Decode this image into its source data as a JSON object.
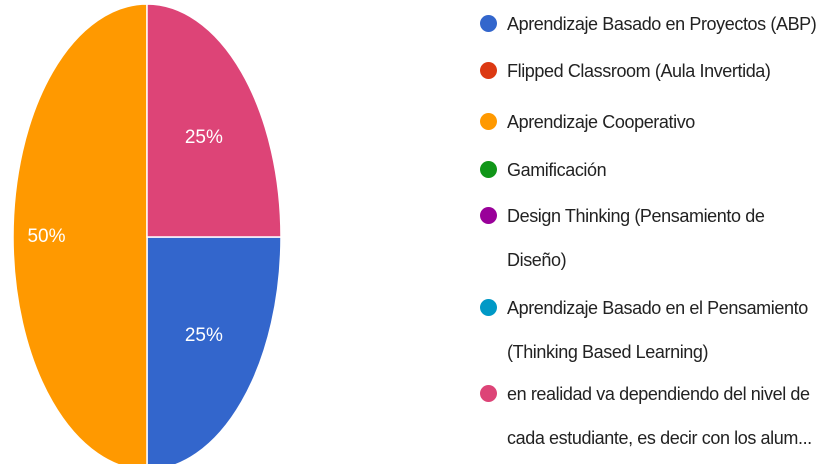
{
  "chart_data": {
    "type": "pie",
    "categories": [
      "Aprendizaje Basado en Proyectos (ABP)",
      "Flipped Classroom (Aula Invertida)",
      "Aprendizaje Cooperativo",
      "Gamificación",
      "Design Thinking (Pensamiento de Diseño)",
      "Aprendizaje Basado en el Pensamiento (Thinking Based Learning)",
      "en realidad va dependiendo del nivel de cada estudiante, es decir con los alum..."
    ],
    "values": [
      25,
      0,
      50,
      0,
      0,
      0,
      25
    ],
    "value_labels": [
      "25%",
      null,
      "50%",
      null,
      null,
      null,
      "25%"
    ],
    "colors": [
      "#3366cc",
      "#dc3912",
      "#ff9900",
      "#109618",
      "#990099",
      "#0099c6",
      "#dd4477"
    ],
    "legend": "right"
  }
}
